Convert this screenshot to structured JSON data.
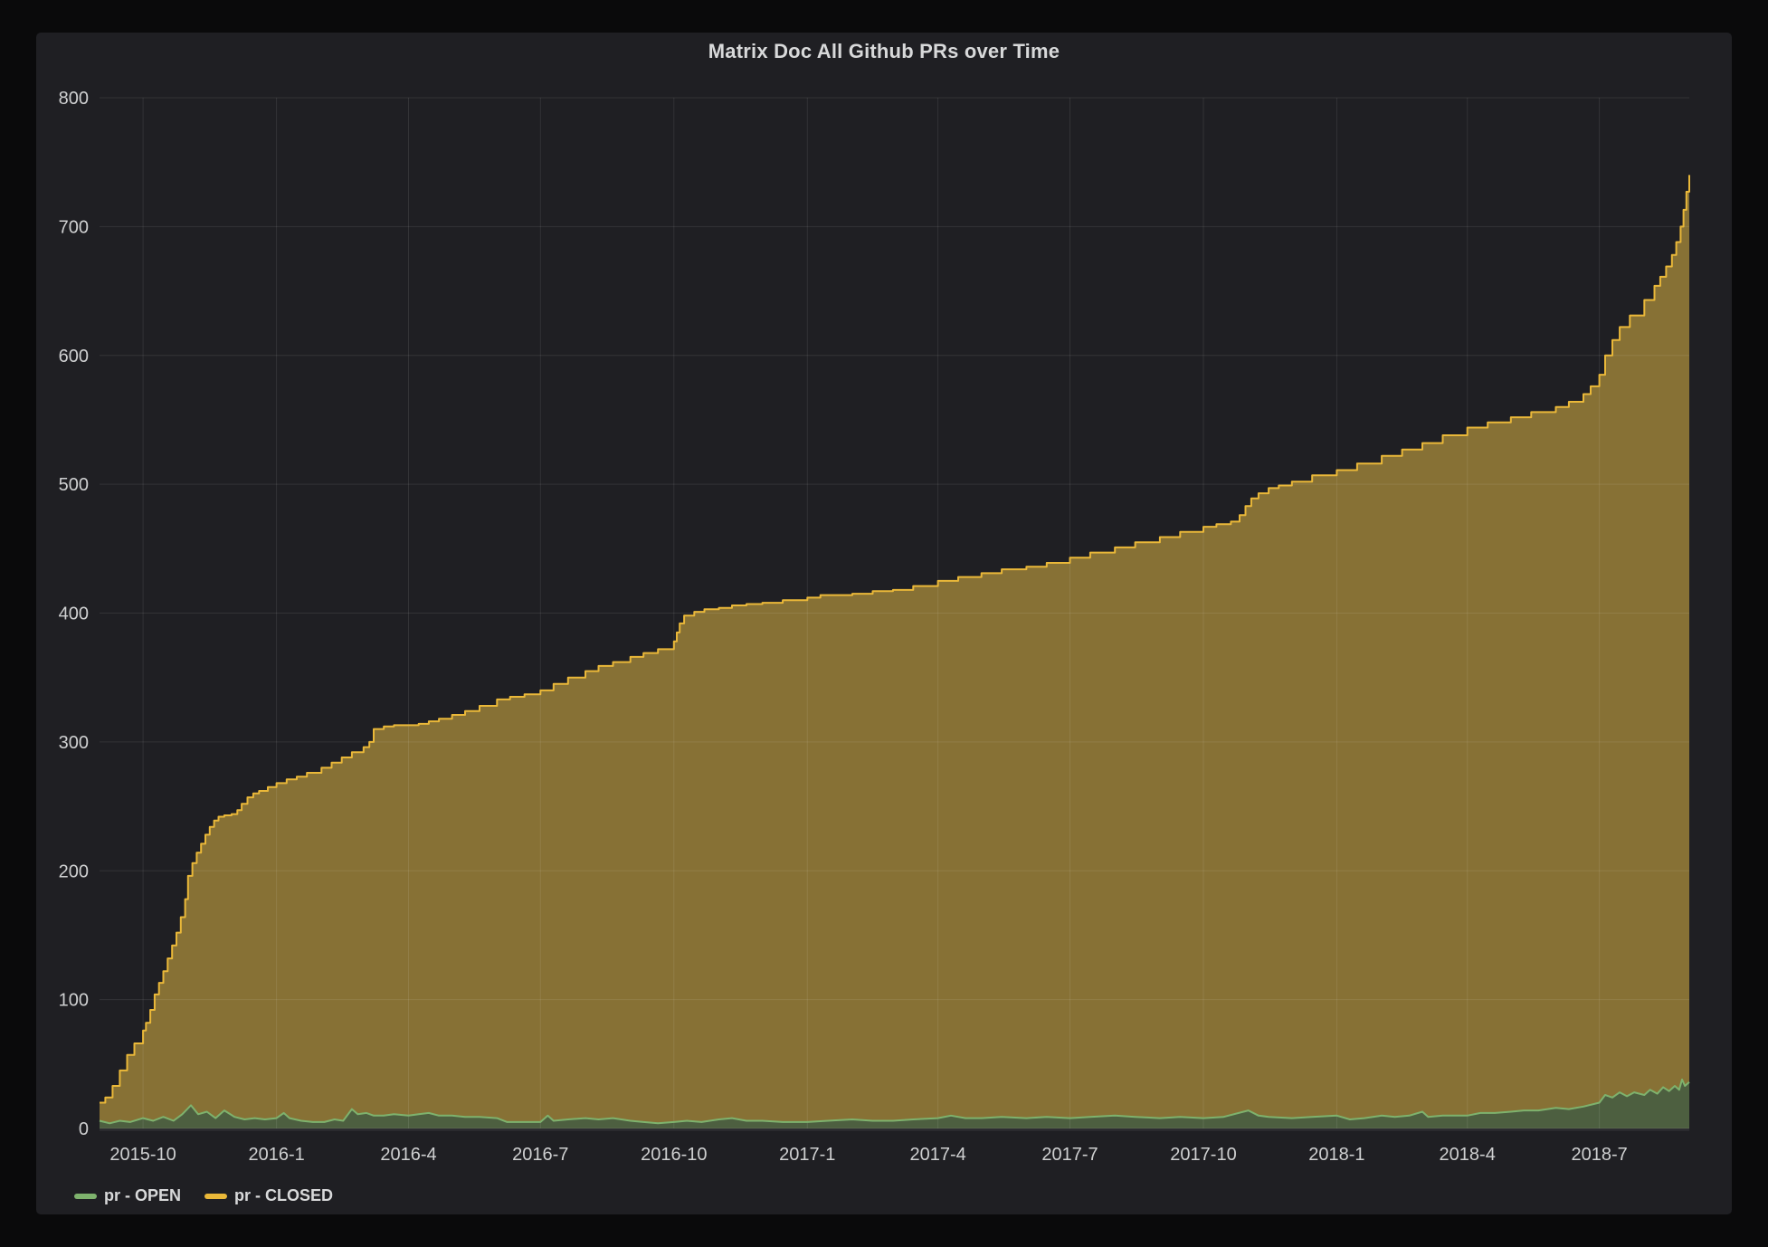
{
  "panel": {
    "title": "Matrix Doc All Github PRs over Time"
  },
  "legend": {
    "items": [
      {
        "label": "pr - OPEN",
        "color": "#7eb26d"
      },
      {
        "label": "pr - CLOSED",
        "color": "#eab839"
      }
    ]
  },
  "colors": {
    "page_bg": "#0a0a0b",
    "panel_bg": "#1f1f23",
    "grid": "rgba(255,255,255,0.09)",
    "tick_text": "#cfd0d1",
    "title_text": "#d8d9da",
    "open_line": "#7eb26d",
    "open_fill": "#4d5f40",
    "closed_line": "#eab839",
    "closed_fill": "#877135"
  },
  "chart_data": {
    "type": "area",
    "title": "Matrix Doc All Github PRs over Time",
    "x_type": "time",
    "x_range": [
      "2015-09-01",
      "2018-09-01"
    ],
    "ylim": [
      0,
      800
    ],
    "y_ticks": [
      0,
      100,
      200,
      300,
      400,
      500,
      600,
      700,
      800
    ],
    "x_ticks": [
      {
        "date": "2015-10-01",
        "label": "2015-10"
      },
      {
        "date": "2016-01-01",
        "label": "2016-1"
      },
      {
        "date": "2016-04-01",
        "label": "2016-4"
      },
      {
        "date": "2016-07-01",
        "label": "2016-7"
      },
      {
        "date": "2016-10-01",
        "label": "2016-10"
      },
      {
        "date": "2017-01-01",
        "label": "2017-1"
      },
      {
        "date": "2017-04-01",
        "label": "2017-4"
      },
      {
        "date": "2017-07-01",
        "label": "2017-7"
      },
      {
        "date": "2017-10-01",
        "label": "2017-10"
      },
      {
        "date": "2018-01-01",
        "label": "2018-1"
      },
      {
        "date": "2018-04-01",
        "label": "2018-4"
      },
      {
        "date": "2018-07-01",
        "label": "2018-7"
      }
    ],
    "grid": true,
    "legend_position": "bottom-left",
    "series": [
      {
        "name": "pr - OPEN",
        "render": "linear",
        "line_color": "#7eb26d",
        "fill_color": "#4d5f40",
        "points": [
          [
            "2015-09-01",
            6
          ],
          [
            "2015-09-08",
            4
          ],
          [
            "2015-09-15",
            6
          ],
          [
            "2015-09-22",
            5
          ],
          [
            "2015-10-01",
            8
          ],
          [
            "2015-10-08",
            6
          ],
          [
            "2015-10-15",
            9
          ],
          [
            "2015-10-22",
            6
          ],
          [
            "2015-10-28",
            11
          ],
          [
            "2015-11-03",
            18
          ],
          [
            "2015-11-08",
            11
          ],
          [
            "2015-11-14",
            13
          ],
          [
            "2015-11-20",
            8
          ],
          [
            "2015-11-26",
            14
          ],
          [
            "2015-12-03",
            9
          ],
          [
            "2015-12-10",
            7
          ],
          [
            "2015-12-17",
            8
          ],
          [
            "2015-12-24",
            7
          ],
          [
            "2016-01-01",
            8
          ],
          [
            "2016-01-06",
            12
          ],
          [
            "2016-01-10",
            8
          ],
          [
            "2016-01-18",
            6
          ],
          [
            "2016-01-26",
            5
          ],
          [
            "2016-02-03",
            5
          ],
          [
            "2016-02-10",
            7
          ],
          [
            "2016-02-16",
            6
          ],
          [
            "2016-02-22",
            15
          ],
          [
            "2016-02-26",
            11
          ],
          [
            "2016-03-03",
            12
          ],
          [
            "2016-03-08",
            10
          ],
          [
            "2016-03-15",
            10
          ],
          [
            "2016-03-22",
            11
          ],
          [
            "2016-04-01",
            10
          ],
          [
            "2016-04-08",
            11
          ],
          [
            "2016-04-15",
            12
          ],
          [
            "2016-04-22",
            10
          ],
          [
            "2016-05-01",
            10
          ],
          [
            "2016-05-10",
            9
          ],
          [
            "2016-05-20",
            9
          ],
          [
            "2016-06-01",
            8
          ],
          [
            "2016-06-08",
            5
          ],
          [
            "2016-06-15",
            5
          ],
          [
            "2016-06-22",
            5
          ],
          [
            "2016-07-01",
            5
          ],
          [
            "2016-07-06",
            10
          ],
          [
            "2016-07-10",
            6
          ],
          [
            "2016-07-20",
            7
          ],
          [
            "2016-08-01",
            8
          ],
          [
            "2016-08-10",
            7
          ],
          [
            "2016-08-20",
            8
          ],
          [
            "2016-09-01",
            6
          ],
          [
            "2016-09-10",
            5
          ],
          [
            "2016-09-20",
            4
          ],
          [
            "2016-10-01",
            5
          ],
          [
            "2016-10-10",
            6
          ],
          [
            "2016-10-20",
            5
          ],
          [
            "2016-11-01",
            7
          ],
          [
            "2016-11-10",
            8
          ],
          [
            "2016-11-20",
            6
          ],
          [
            "2016-12-01",
            6
          ],
          [
            "2016-12-15",
            5
          ],
          [
            "2017-01-01",
            5
          ],
          [
            "2017-01-15",
            6
          ],
          [
            "2017-02-01",
            7
          ],
          [
            "2017-02-15",
            6
          ],
          [
            "2017-03-01",
            6
          ],
          [
            "2017-03-15",
            7
          ],
          [
            "2017-04-01",
            8
          ],
          [
            "2017-04-10",
            10
          ],
          [
            "2017-04-20",
            8
          ],
          [
            "2017-05-01",
            8
          ],
          [
            "2017-05-15",
            9
          ],
          [
            "2017-06-01",
            8
          ],
          [
            "2017-06-15",
            9
          ],
          [
            "2017-07-01",
            8
          ],
          [
            "2017-07-15",
            9
          ],
          [
            "2017-08-01",
            10
          ],
          [
            "2017-08-15",
            9
          ],
          [
            "2017-09-01",
            8
          ],
          [
            "2017-09-15",
            9
          ],
          [
            "2017-10-01",
            8
          ],
          [
            "2017-10-15",
            9
          ],
          [
            "2017-11-01",
            14
          ],
          [
            "2017-11-08",
            10
          ],
          [
            "2017-11-15",
            9
          ],
          [
            "2017-12-01",
            8
          ],
          [
            "2017-12-15",
            9
          ],
          [
            "2018-01-01",
            10
          ],
          [
            "2018-01-10",
            7
          ],
          [
            "2018-01-20",
            8
          ],
          [
            "2018-02-01",
            10
          ],
          [
            "2018-02-10",
            9
          ],
          [
            "2018-02-20",
            10
          ],
          [
            "2018-03-01",
            13
          ],
          [
            "2018-03-05",
            9
          ],
          [
            "2018-03-15",
            10
          ],
          [
            "2018-03-25",
            10
          ],
          [
            "2018-04-01",
            10
          ],
          [
            "2018-04-10",
            12
          ],
          [
            "2018-04-20",
            12
          ],
          [
            "2018-05-01",
            13
          ],
          [
            "2018-05-10",
            14
          ],
          [
            "2018-05-20",
            14
          ],
          [
            "2018-06-01",
            16
          ],
          [
            "2018-06-10",
            15
          ],
          [
            "2018-06-20",
            17
          ],
          [
            "2018-07-01",
            20
          ],
          [
            "2018-07-05",
            26
          ],
          [
            "2018-07-10",
            24
          ],
          [
            "2018-07-15",
            28
          ],
          [
            "2018-07-20",
            25
          ],
          [
            "2018-07-25",
            28
          ],
          [
            "2018-08-01",
            26
          ],
          [
            "2018-08-05",
            30
          ],
          [
            "2018-08-10",
            27
          ],
          [
            "2018-08-14",
            32
          ],
          [
            "2018-08-18",
            29
          ],
          [
            "2018-08-22",
            33
          ],
          [
            "2018-08-25",
            30
          ],
          [
            "2018-08-27",
            38
          ],
          [
            "2018-08-29",
            33
          ],
          [
            "2018-09-01",
            36
          ]
        ]
      },
      {
        "name": "pr - CLOSED",
        "render": "step-after",
        "line_color": "#eab839",
        "fill_color": "#877135",
        "points": [
          [
            "2015-09-01",
            20
          ],
          [
            "2015-09-05",
            24
          ],
          [
            "2015-09-10",
            33
          ],
          [
            "2015-09-15",
            45
          ],
          [
            "2015-09-20",
            57
          ],
          [
            "2015-09-25",
            66
          ],
          [
            "2015-10-01",
            76
          ],
          [
            "2015-10-03",
            82
          ],
          [
            "2015-10-06",
            92
          ],
          [
            "2015-10-09",
            104
          ],
          [
            "2015-10-12",
            113
          ],
          [
            "2015-10-15",
            122
          ],
          [
            "2015-10-18",
            132
          ],
          [
            "2015-10-21",
            142
          ],
          [
            "2015-10-24",
            152
          ],
          [
            "2015-10-27",
            164
          ],
          [
            "2015-10-30",
            178
          ],
          [
            "2015-11-01",
            196
          ],
          [
            "2015-11-04",
            206
          ],
          [
            "2015-11-07",
            214
          ],
          [
            "2015-11-10",
            221
          ],
          [
            "2015-11-13",
            228
          ],
          [
            "2015-11-16",
            234
          ],
          [
            "2015-11-19",
            239
          ],
          [
            "2015-11-22",
            242
          ],
          [
            "2015-11-26",
            243
          ],
          [
            "2015-12-01",
            244
          ],
          [
            "2015-12-05",
            247
          ],
          [
            "2015-12-08",
            252
          ],
          [
            "2015-12-12",
            257
          ],
          [
            "2015-12-16",
            260
          ],
          [
            "2015-12-20",
            262
          ],
          [
            "2015-12-26",
            265
          ],
          [
            "2016-01-01",
            268
          ],
          [
            "2016-01-08",
            271
          ],
          [
            "2016-01-15",
            273
          ],
          [
            "2016-01-22",
            276
          ],
          [
            "2016-02-01",
            280
          ],
          [
            "2016-02-08",
            284
          ],
          [
            "2016-02-15",
            288
          ],
          [
            "2016-02-22",
            292
          ],
          [
            "2016-03-01",
            296
          ],
          [
            "2016-03-05",
            300
          ],
          [
            "2016-03-08",
            310
          ],
          [
            "2016-03-15",
            312
          ],
          [
            "2016-03-22",
            313
          ],
          [
            "2016-04-01",
            313
          ],
          [
            "2016-04-08",
            314
          ],
          [
            "2016-04-15",
            316
          ],
          [
            "2016-04-22",
            318
          ],
          [
            "2016-05-01",
            321
          ],
          [
            "2016-05-10",
            324
          ],
          [
            "2016-05-20",
            328
          ],
          [
            "2016-06-01",
            333
          ],
          [
            "2016-06-10",
            335
          ],
          [
            "2016-06-20",
            337
          ],
          [
            "2016-07-01",
            340
          ],
          [
            "2016-07-10",
            345
          ],
          [
            "2016-07-20",
            350
          ],
          [
            "2016-08-01",
            355
          ],
          [
            "2016-08-10",
            359
          ],
          [
            "2016-08-20",
            362
          ],
          [
            "2016-09-01",
            366
          ],
          [
            "2016-09-10",
            369
          ],
          [
            "2016-09-20",
            372
          ],
          [
            "2016-10-01",
            378
          ],
          [
            "2016-10-03",
            385
          ],
          [
            "2016-10-05",
            392
          ],
          [
            "2016-10-08",
            398
          ],
          [
            "2016-10-15",
            401
          ],
          [
            "2016-10-22",
            403
          ],
          [
            "2016-11-01",
            404
          ],
          [
            "2016-11-10",
            406
          ],
          [
            "2016-11-20",
            407
          ],
          [
            "2016-12-01",
            408
          ],
          [
            "2016-12-15",
            410
          ],
          [
            "2017-01-01",
            412
          ],
          [
            "2017-01-10",
            414
          ],
          [
            "2017-01-20",
            414
          ],
          [
            "2017-02-01",
            415
          ],
          [
            "2017-02-15",
            417
          ],
          [
            "2017-03-01",
            418
          ],
          [
            "2017-03-15",
            421
          ],
          [
            "2017-04-01",
            425
          ],
          [
            "2017-04-15",
            428
          ],
          [
            "2017-05-01",
            431
          ],
          [
            "2017-05-15",
            434
          ],
          [
            "2017-06-01",
            436
          ],
          [
            "2017-06-15",
            439
          ],
          [
            "2017-07-01",
            443
          ],
          [
            "2017-07-15",
            447
          ],
          [
            "2017-08-01",
            451
          ],
          [
            "2017-08-15",
            455
          ],
          [
            "2017-09-01",
            459
          ],
          [
            "2017-09-15",
            463
          ],
          [
            "2017-10-01",
            467
          ],
          [
            "2017-10-10",
            469
          ],
          [
            "2017-10-20",
            471
          ],
          [
            "2017-10-26",
            476
          ],
          [
            "2017-10-30",
            483
          ],
          [
            "2017-11-03",
            489
          ],
          [
            "2017-11-08",
            493
          ],
          [
            "2017-11-15",
            497
          ],
          [
            "2017-11-22",
            499
          ],
          [
            "2017-12-01",
            502
          ],
          [
            "2017-12-15",
            507
          ],
          [
            "2018-01-01",
            511
          ],
          [
            "2018-01-15",
            516
          ],
          [
            "2018-02-01",
            522
          ],
          [
            "2018-02-15",
            527
          ],
          [
            "2018-03-01",
            532
          ],
          [
            "2018-03-15",
            538
          ],
          [
            "2018-04-01",
            544
          ],
          [
            "2018-04-15",
            548
          ],
          [
            "2018-05-01",
            552
          ],
          [
            "2018-05-15",
            556
          ],
          [
            "2018-06-01",
            560
          ],
          [
            "2018-06-10",
            564
          ],
          [
            "2018-06-20",
            570
          ],
          [
            "2018-06-25",
            576
          ],
          [
            "2018-07-01",
            585
          ],
          [
            "2018-07-05",
            600
          ],
          [
            "2018-07-10",
            612
          ],
          [
            "2018-07-15",
            622
          ],
          [
            "2018-07-22",
            631
          ],
          [
            "2018-08-01",
            643
          ],
          [
            "2018-08-08",
            654
          ],
          [
            "2018-08-12",
            661
          ],
          [
            "2018-08-16",
            669
          ],
          [
            "2018-08-20",
            678
          ],
          [
            "2018-08-23",
            688
          ],
          [
            "2018-08-26",
            700
          ],
          [
            "2018-08-28",
            713
          ],
          [
            "2018-08-30",
            727
          ],
          [
            "2018-09-01",
            740
          ]
        ]
      }
    ]
  }
}
